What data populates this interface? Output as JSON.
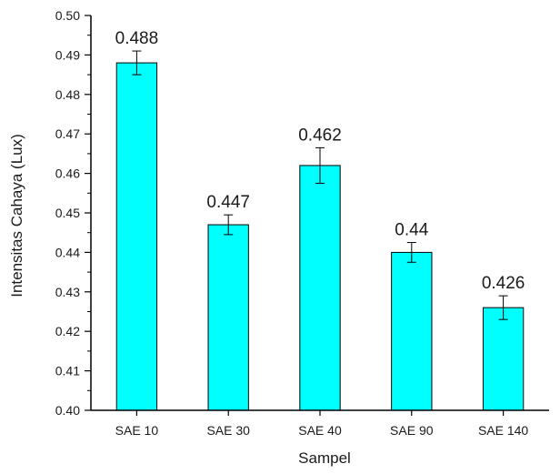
{
  "chart_data": {
    "type": "bar",
    "title": "",
    "xlabel": "Sampel",
    "ylabel": "Intensitas Cahaya (Lux)",
    "categories": [
      "SAE 10",
      "SAE 30",
      "SAE 40",
      "SAE 90",
      "SAE 140"
    ],
    "values": [
      0.488,
      0.447,
      0.462,
      0.44,
      0.426
    ],
    "value_labels": [
      "0.488",
      "0.447",
      "0.462",
      "0.44",
      "0.426"
    ],
    "error_bars": [
      0.003,
      0.0025,
      0.0045,
      0.0025,
      0.003
    ],
    "ylim": [
      0.4,
      0.5
    ],
    "yticks": [
      "0.40",
      "0.41",
      "0.42",
      "0.43",
      "0.44",
      "0.45",
      "0.46",
      "0.47",
      "0.48",
      "0.49",
      "0.50"
    ],
    "bar_color": "#00ffff",
    "edge_color": "#000000",
    "grid": false,
    "legend": "none"
  }
}
